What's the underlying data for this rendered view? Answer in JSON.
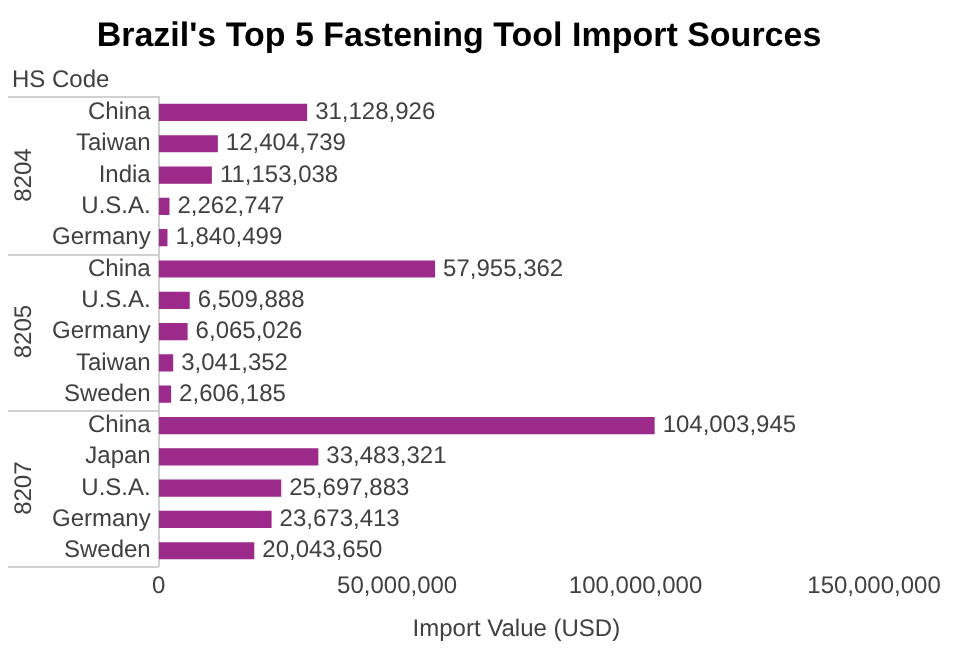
{
  "chart_data": {
    "type": "bar",
    "orientation": "horizontal",
    "title": "Brazil's Top 5 Fastening Tool Import Sources",
    "xlabel": "Import Value (USD)",
    "ylabel": "HS Code",
    "categories": [
      "China",
      "Taiwan",
      "India",
      "U.S.A.",
      "Germany",
      "China",
      "U.S.A.",
      "Germany",
      "Taiwan",
      "Sweden",
      "China",
      "Japan",
      "U.S.A.",
      "Germany",
      "Sweden"
    ],
    "values": [
      31128926,
      12404739,
      11153038,
      2262747,
      1840499,
      57955362,
      6509888,
      6065026,
      3041352,
      2606185,
      104003945,
      33483321,
      25697883,
      23673413,
      20043650
    ],
    "color": "#9b2a8a",
    "xlim": [
      0,
      150000000
    ],
    "xticks": [
      0,
      {
        "value": 50000000,
        "label": "50,000,000"
      },
      {
        "value": 100000000,
        "label": "100,000,000"
      },
      {
        "value": 150000000,
        "label": "150,000,000"
      }
    ],
    "annotations": [
      "8204",
      "8205",
      "8207"
    ],
    "value_labels": [
      "31,128,926",
      "12,404,739",
      "11,153,038",
      "2,262,747",
      "1,840,499",
      "57,955,362",
      "6,509,888",
      "6,065,026",
      "3,041,352",
      "2,606,185",
      "104,003,945",
      "33,483,321",
      "25,697,883",
      "23,673,413",
      "20,043,650"
    ],
    "grid": false,
    "legend": false
  }
}
